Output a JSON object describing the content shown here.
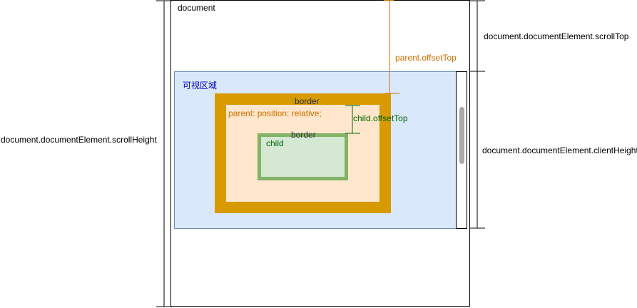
{
  "labels": {
    "document": "document",
    "scroll_height": "document.documentElement.scrollHeight",
    "scroll_top": "document.documentElement.scrollTop",
    "client_height": "document.documentElement.clientHeight",
    "viewport": "可视区域",
    "parent_border": "border",
    "parent_position": "parent: position: relative;",
    "parent_offset_top": "parent.offsetTop",
    "child_offset_top": "child.offsetTop",
    "child_border": "border",
    "child": "child"
  },
  "colors": {
    "viewport_fill": "#dae8fc",
    "viewport_stroke": "#6c8ebf",
    "viewport_text": "#0000cc",
    "parent_border": "#d79b00",
    "parent_fill": "#ffe6cc",
    "parent_text": "#d07000",
    "child_border": "#82b366",
    "child_fill": "#d5e8d4",
    "child_text": "#006600",
    "line": "#000000",
    "scrollbar_thumb": "#a9a9a9"
  }
}
